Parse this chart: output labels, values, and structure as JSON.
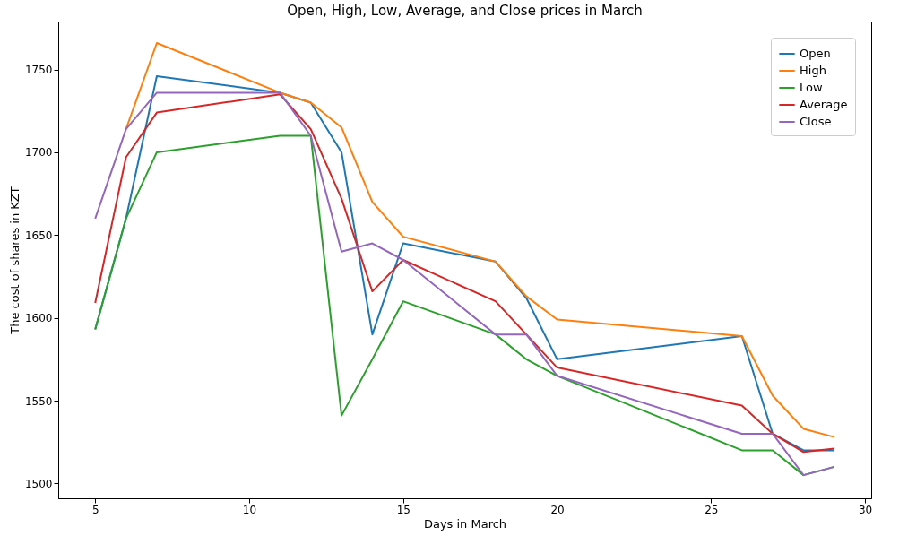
{
  "chart_data": {
    "type": "line",
    "title": "Open, High, Low, Average, and Close prices in March",
    "xlabel": "Days in March",
    "ylabel": "The cost of shares in KZT",
    "x": [
      5,
      6,
      7,
      11,
      12,
      13,
      14,
      15,
      18,
      19,
      20,
      26,
      27,
      28,
      29
    ],
    "series": [
      {
        "name": "Open",
        "color": "#1f77b4",
        "values": [
          1593,
          1660,
          1746,
          1736,
          1730,
          1700,
          1590,
          1645,
          1634,
          1612,
          1575,
          1589,
          1530,
          1520,
          1520
        ]
      },
      {
        "name": "High",
        "color": "#ff7f0e",
        "values": [
          null,
          1714,
          1766,
          1736,
          1730,
          1715,
          1670,
          1649,
          1634,
          1613,
          1599,
          1589,
          1553,
          1533,
          1528
        ]
      },
      {
        "name": "Low",
        "color": "#2ca02c",
        "values": [
          1593,
          1660,
          1700,
          1710,
          1710,
          1541,
          1575,
          1610,
          1590,
          1575,
          1565,
          1520,
          1520,
          1505,
          1510
        ]
      },
      {
        "name": "Average",
        "color": "#d62728",
        "values": [
          1609,
          1697,
          1724,
          1735,
          1714,
          1672,
          1616,
          1635,
          1610,
          1590,
          1570,
          1547,
          1530,
          1519,
          1521
        ]
      },
      {
        "name": "Close",
        "color": "#9467bd",
        "values": [
          1660,
          1714,
          1736,
          1736,
          1710,
          1640,
          1645,
          1635,
          1590,
          1590,
          1565,
          1530,
          1530,
          1505,
          1510
        ]
      }
    ],
    "xlim": [
      3.8,
      30.2
    ],
    "ylim": [
      1491,
      1779
    ],
    "xticks": [
      5,
      10,
      15,
      20,
      25,
      30
    ],
    "yticks": [
      1500,
      1550,
      1600,
      1650,
      1700,
      1750
    ],
    "legend": "top right",
    "grid": false,
    "marker": "none",
    "line_style": "solid"
  }
}
